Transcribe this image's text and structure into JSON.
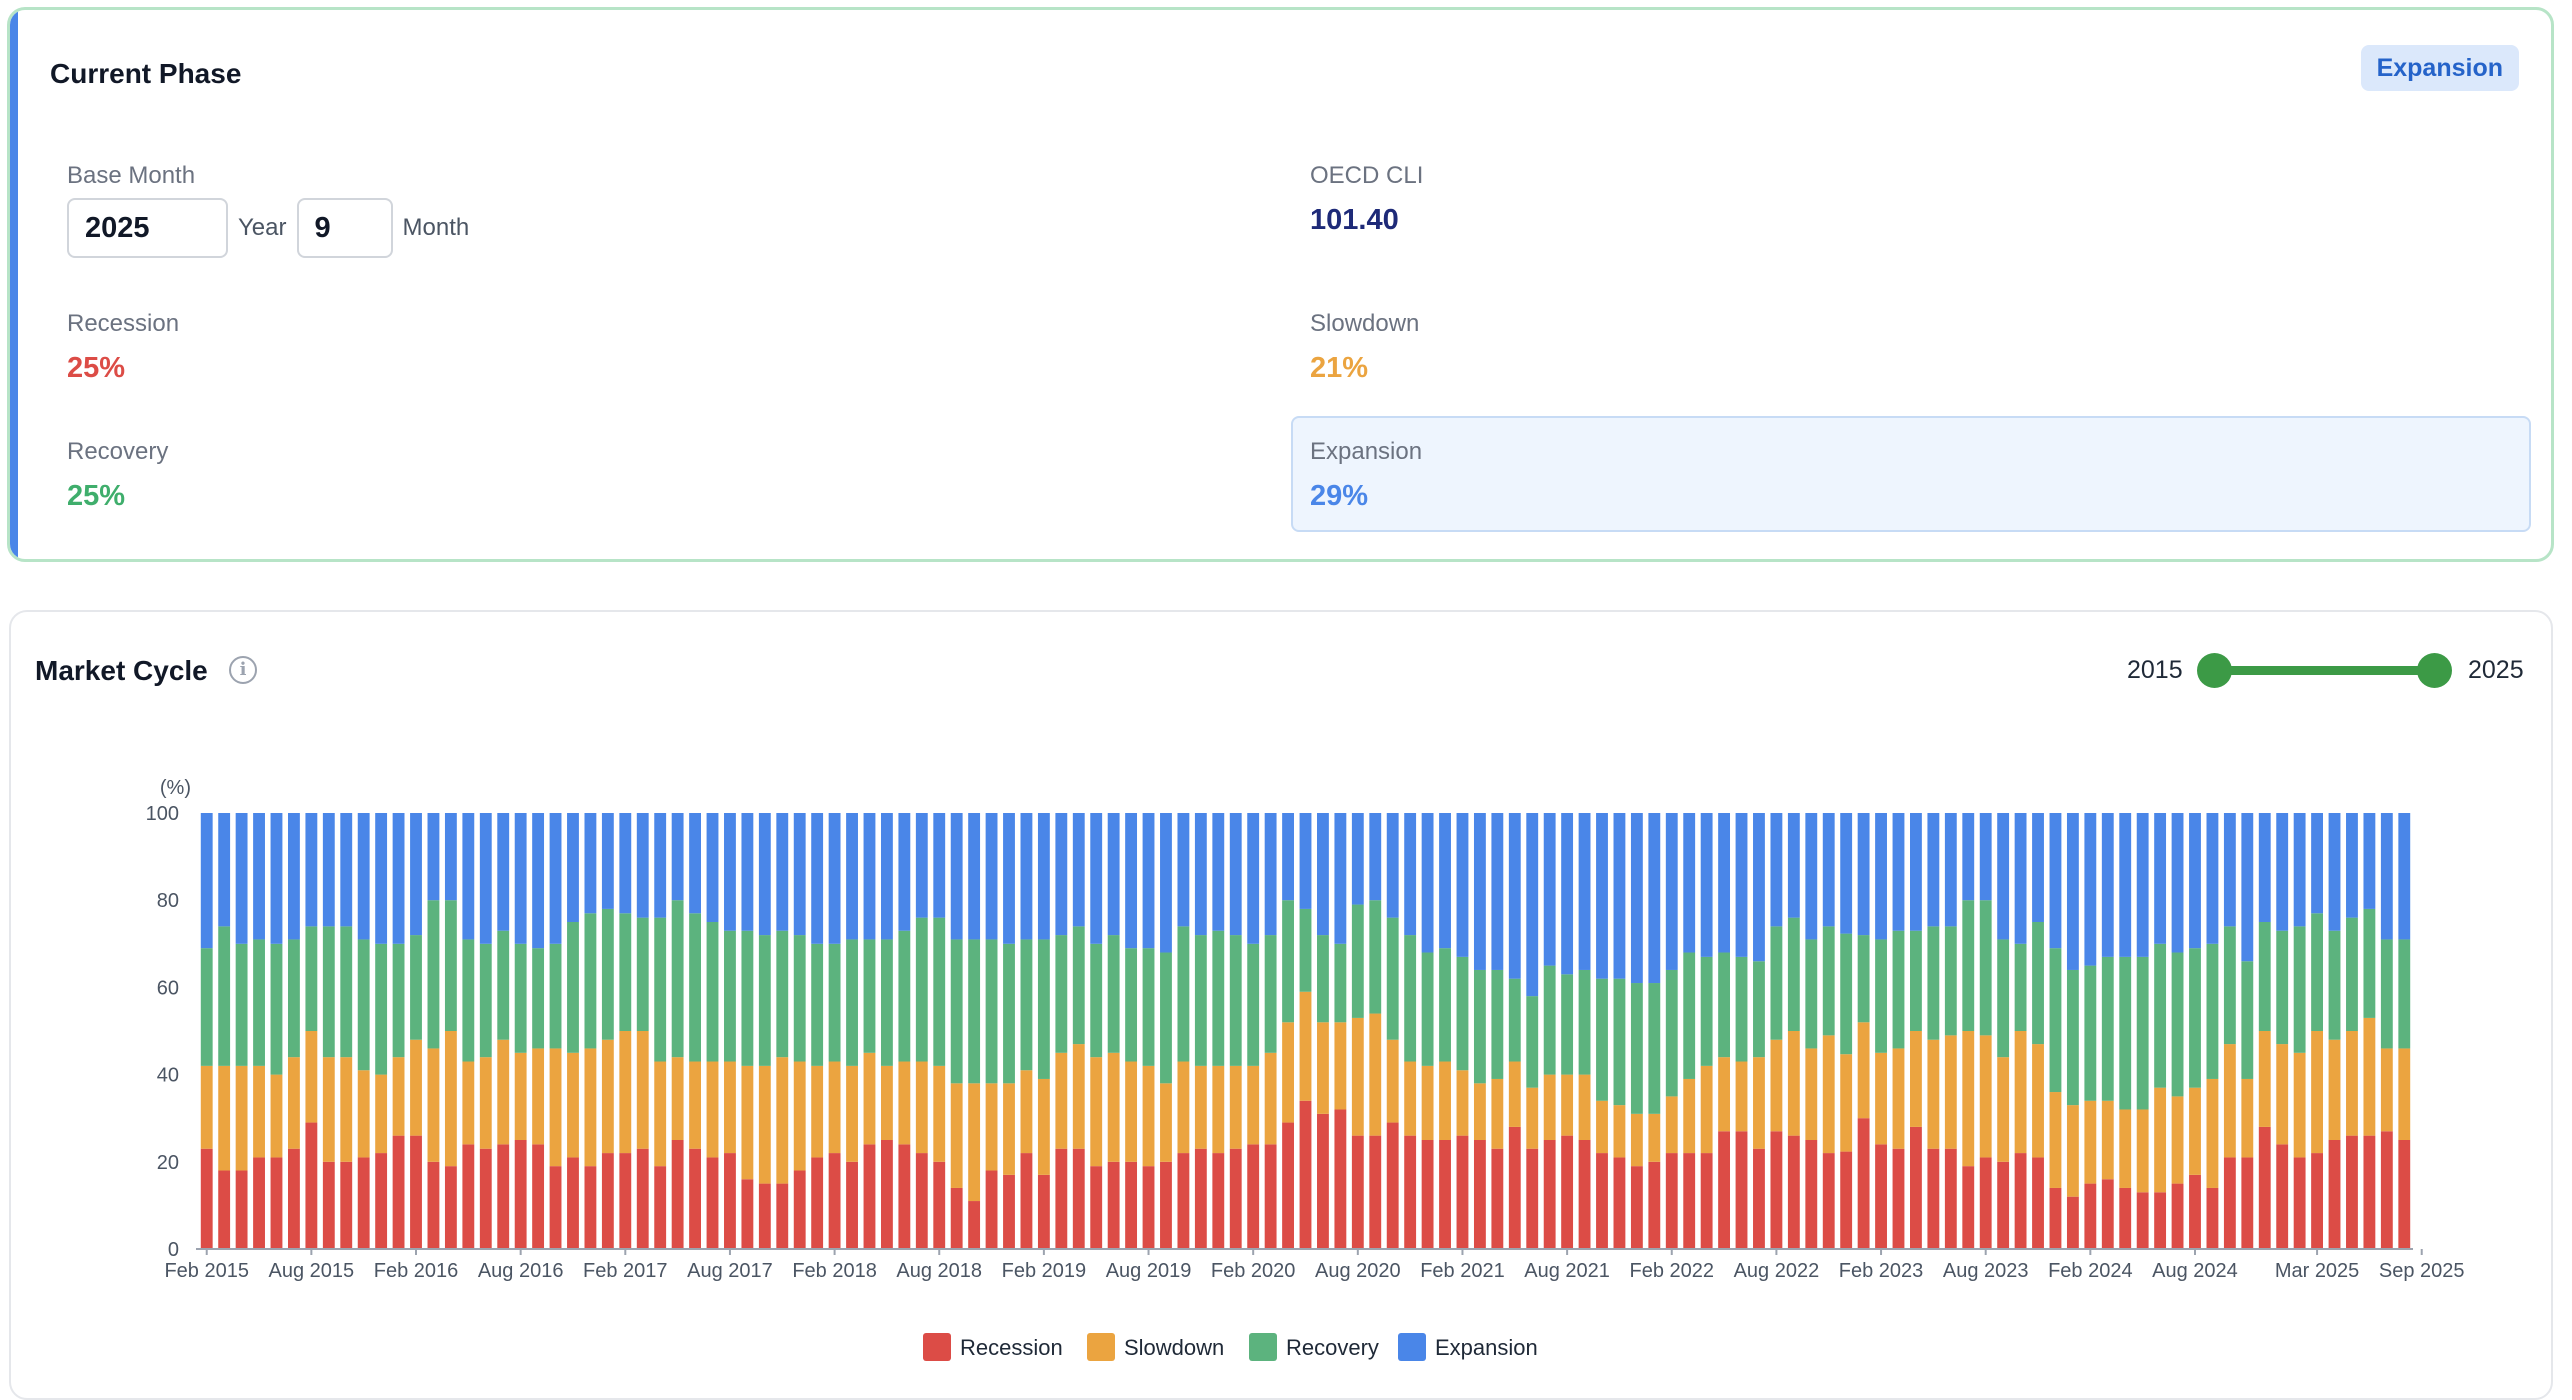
{
  "phase_card": {
    "title": "Current Phase",
    "badge": "Expansion",
    "accent_color": "#4a86e8",
    "base_month": {
      "label": "Base Month",
      "year_value": "2025",
      "year_unit": "Year",
      "month_value": "9",
      "month_unit": "Month"
    },
    "oecd_cli": {
      "label": "OECD CLI",
      "value": "101.40"
    },
    "recession": {
      "label": "Recession",
      "value": "25%"
    },
    "slowdown": {
      "label": "Slowdown",
      "value": "21%"
    },
    "recovery": {
      "label": "Recovery",
      "value": "25%"
    },
    "expansion": {
      "label": "Expansion",
      "value": "29%"
    }
  },
  "cycle_card": {
    "title": "Market Cycle",
    "info_icon": "info-icon",
    "range": {
      "start": "2015",
      "end": "2025"
    }
  },
  "colors": {
    "recession": "#dc4c46",
    "slowdown": "#eba440",
    "recovery": "#5cb37e",
    "expansion": "#4a86e8",
    "slider": "#3c9a46"
  },
  "chart_data": {
    "type": "bar",
    "stacked": true,
    "ylabel": "(%)",
    "ylim": [
      0,
      100
    ],
    "yticks": [
      0,
      20,
      40,
      60,
      80,
      100
    ],
    "x_tick_labels": [
      "Feb 2015",
      "Aug 2015",
      "Feb 2016",
      "Aug 2016",
      "Feb 2017",
      "Aug 2017",
      "Feb 2018",
      "Aug 2018",
      "Feb 2019",
      "Aug 2019",
      "Feb 2020",
      "Aug 2020",
      "Feb 2021",
      "Aug 2021",
      "Feb 2022",
      "Aug 2022",
      "Feb 2023",
      "Aug 2023",
      "Feb 2024",
      "Aug 2024",
      "Mar 2025",
      "Sep 2025"
    ],
    "legend": [
      "Recession",
      "Slowdown",
      "Recovery",
      "Expansion"
    ],
    "legend_position": "bottom",
    "grid": false,
    "start_month": "Feb 2015",
    "end_month": "Sep 2025",
    "series": [
      {
        "name": "Recession",
        "values": [
          23,
          18,
          18,
          21,
          21,
          23,
          29,
          20,
          20,
          21,
          22,
          26,
          26,
          20,
          19,
          24,
          23,
          24,
          25,
          24,
          19,
          21,
          19,
          22,
          22,
          23,
          19,
          25,
          23,
          21,
          22,
          16,
          15,
          15,
          18,
          21,
          22,
          20,
          24,
          25,
          24,
          22,
          20,
          14,
          11,
          18,
          17,
          22,
          17,
          23,
          23,
          19,
          20,
          20,
          19,
          20,
          22,
          23,
          22,
          23,
          24,
          24,
          29,
          34,
          31,
          32,
          26,
          26,
          29,
          26,
          25,
          25,
          26,
          25,
          23,
          28,
          23,
          25,
          26,
          25,
          22,
          21,
          19,
          20,
          22,
          22,
          22,
          27,
          27,
          23,
          27,
          26,
          25,
          22,
          21,
          30,
          24,
          23,
          28,
          23,
          23,
          19,
          21,
          20,
          22,
          21,
          14,
          12,
          15,
          16,
          14,
          13,
          13,
          15,
          17,
          14,
          21,
          21,
          28,
          24,
          21,
          22,
          25,
          26,
          26,
          27,
          25
        ]
      },
      {
        "name": "Slowdown",
        "values": [
          19,
          24,
          24,
          21,
          19,
          21,
          21,
          24,
          24,
          20,
          18,
          18,
          22,
          26,
          31,
          19,
          21,
          24,
          20,
          22,
          27,
          24,
          27,
          26,
          28,
          27,
          24,
          19,
          20,
          22,
          21,
          26,
          27,
          29,
          25,
          21,
          21,
          22,
          21,
          17,
          19,
          21,
          22,
          24,
          27,
          20,
          21,
          19,
          22,
          22,
          24,
          25,
          25,
          23,
          23,
          18,
          21,
          19,
          20,
          19,
          18,
          21,
          23,
          25,
          21,
          20,
          27,
          28,
          19,
          17,
          17,
          18,
          15,
          13,
          16,
          15,
          14,
          15,
          14,
          15,
          12,
          12,
          12,
          11,
          13,
          17,
          20,
          17,
          16,
          21,
          21,
          24,
          21,
          27,
          21,
          22,
          21,
          23,
          22,
          25,
          26,
          31,
          28,
          24,
          28,
          26,
          22,
          21,
          19,
          18,
          18,
          19,
          24,
          20,
          20,
          25,
          26,
          18,
          22,
          23,
          24,
          28,
          23,
          24,
          27,
          19,
          21
        ]
      },
      {
        "name": "Recovery",
        "values": [
          27,
          32,
          28,
          29,
          30,
          27,
          24,
          30,
          30,
          30,
          30,
          26,
          24,
          34,
          30,
          28,
          26,
          25,
          25,
          23,
          24,
          30,
          31,
          30,
          27,
          26,
          33,
          36,
          34,
          32,
          30,
          31,
          30,
          29,
          29,
          28,
          27,
          29,
          26,
          29,
          30,
          33,
          34,
          33,
          33,
          33,
          32,
          30,
          32,
          27,
          27,
          26,
          27,
          26,
          27,
          30,
          31,
          30,
          31,
          30,
          28,
          27,
          28,
          19,
          20,
          18,
          26,
          26,
          28,
          29,
          26,
          26,
          26,
          26,
          25,
          19,
          21,
          25,
          23,
          24,
          28,
          29,
          30,
          30,
          29,
          29,
          25,
          24,
          24,
          22,
          26,
          26,
          25,
          25,
          26,
          20,
          26,
          27,
          23,
          26,
          25,
          30,
          31,
          27,
          20,
          28,
          33,
          31,
          31,
          33,
          35,
          35,
          33,
          33,
          32,
          31,
          27,
          27,
          25,
          26,
          29,
          27,
          25,
          26,
          25,
          25,
          25
        ]
      },
      {
        "name": "Expansion",
        "values": [
          31,
          26,
          30,
          29,
          30,
          29,
          26,
          26,
          26,
          29,
          30,
          30,
          28,
          20,
          20,
          29,
          30,
          27,
          30,
          31,
          30,
          25,
          23,
          22,
          23,
          24,
          24,
          20,
          23,
          25,
          27,
          27,
          28,
          27,
          28,
          30,
          30,
          29,
          29,
          29,
          27,
          24,
          24,
          29,
          29,
          29,
          30,
          29,
          29,
          28,
          26,
          30,
          28,
          31,
          31,
          32,
          26,
          28,
          27,
          28,
          30,
          28,
          20,
          22,
          28,
          30,
          21,
          20,
          24,
          28,
          32,
          31,
          33,
          36,
          36,
          38,
          42,
          35,
          37,
          36,
          38,
          38,
          39,
          39,
          36,
          32,
          33,
          32,
          33,
          34,
          26,
          24,
          29,
          26,
          26,
          28,
          29,
          27,
          27,
          26,
          26,
          20,
          20,
          29,
          30,
          25,
          31,
          36,
          35,
          33,
          33,
          33,
          30,
          32,
          31,
          30,
          26,
          34,
          25,
          27,
          26,
          23,
          27,
          24,
          22,
          29,
          29
        ]
      }
    ]
  }
}
